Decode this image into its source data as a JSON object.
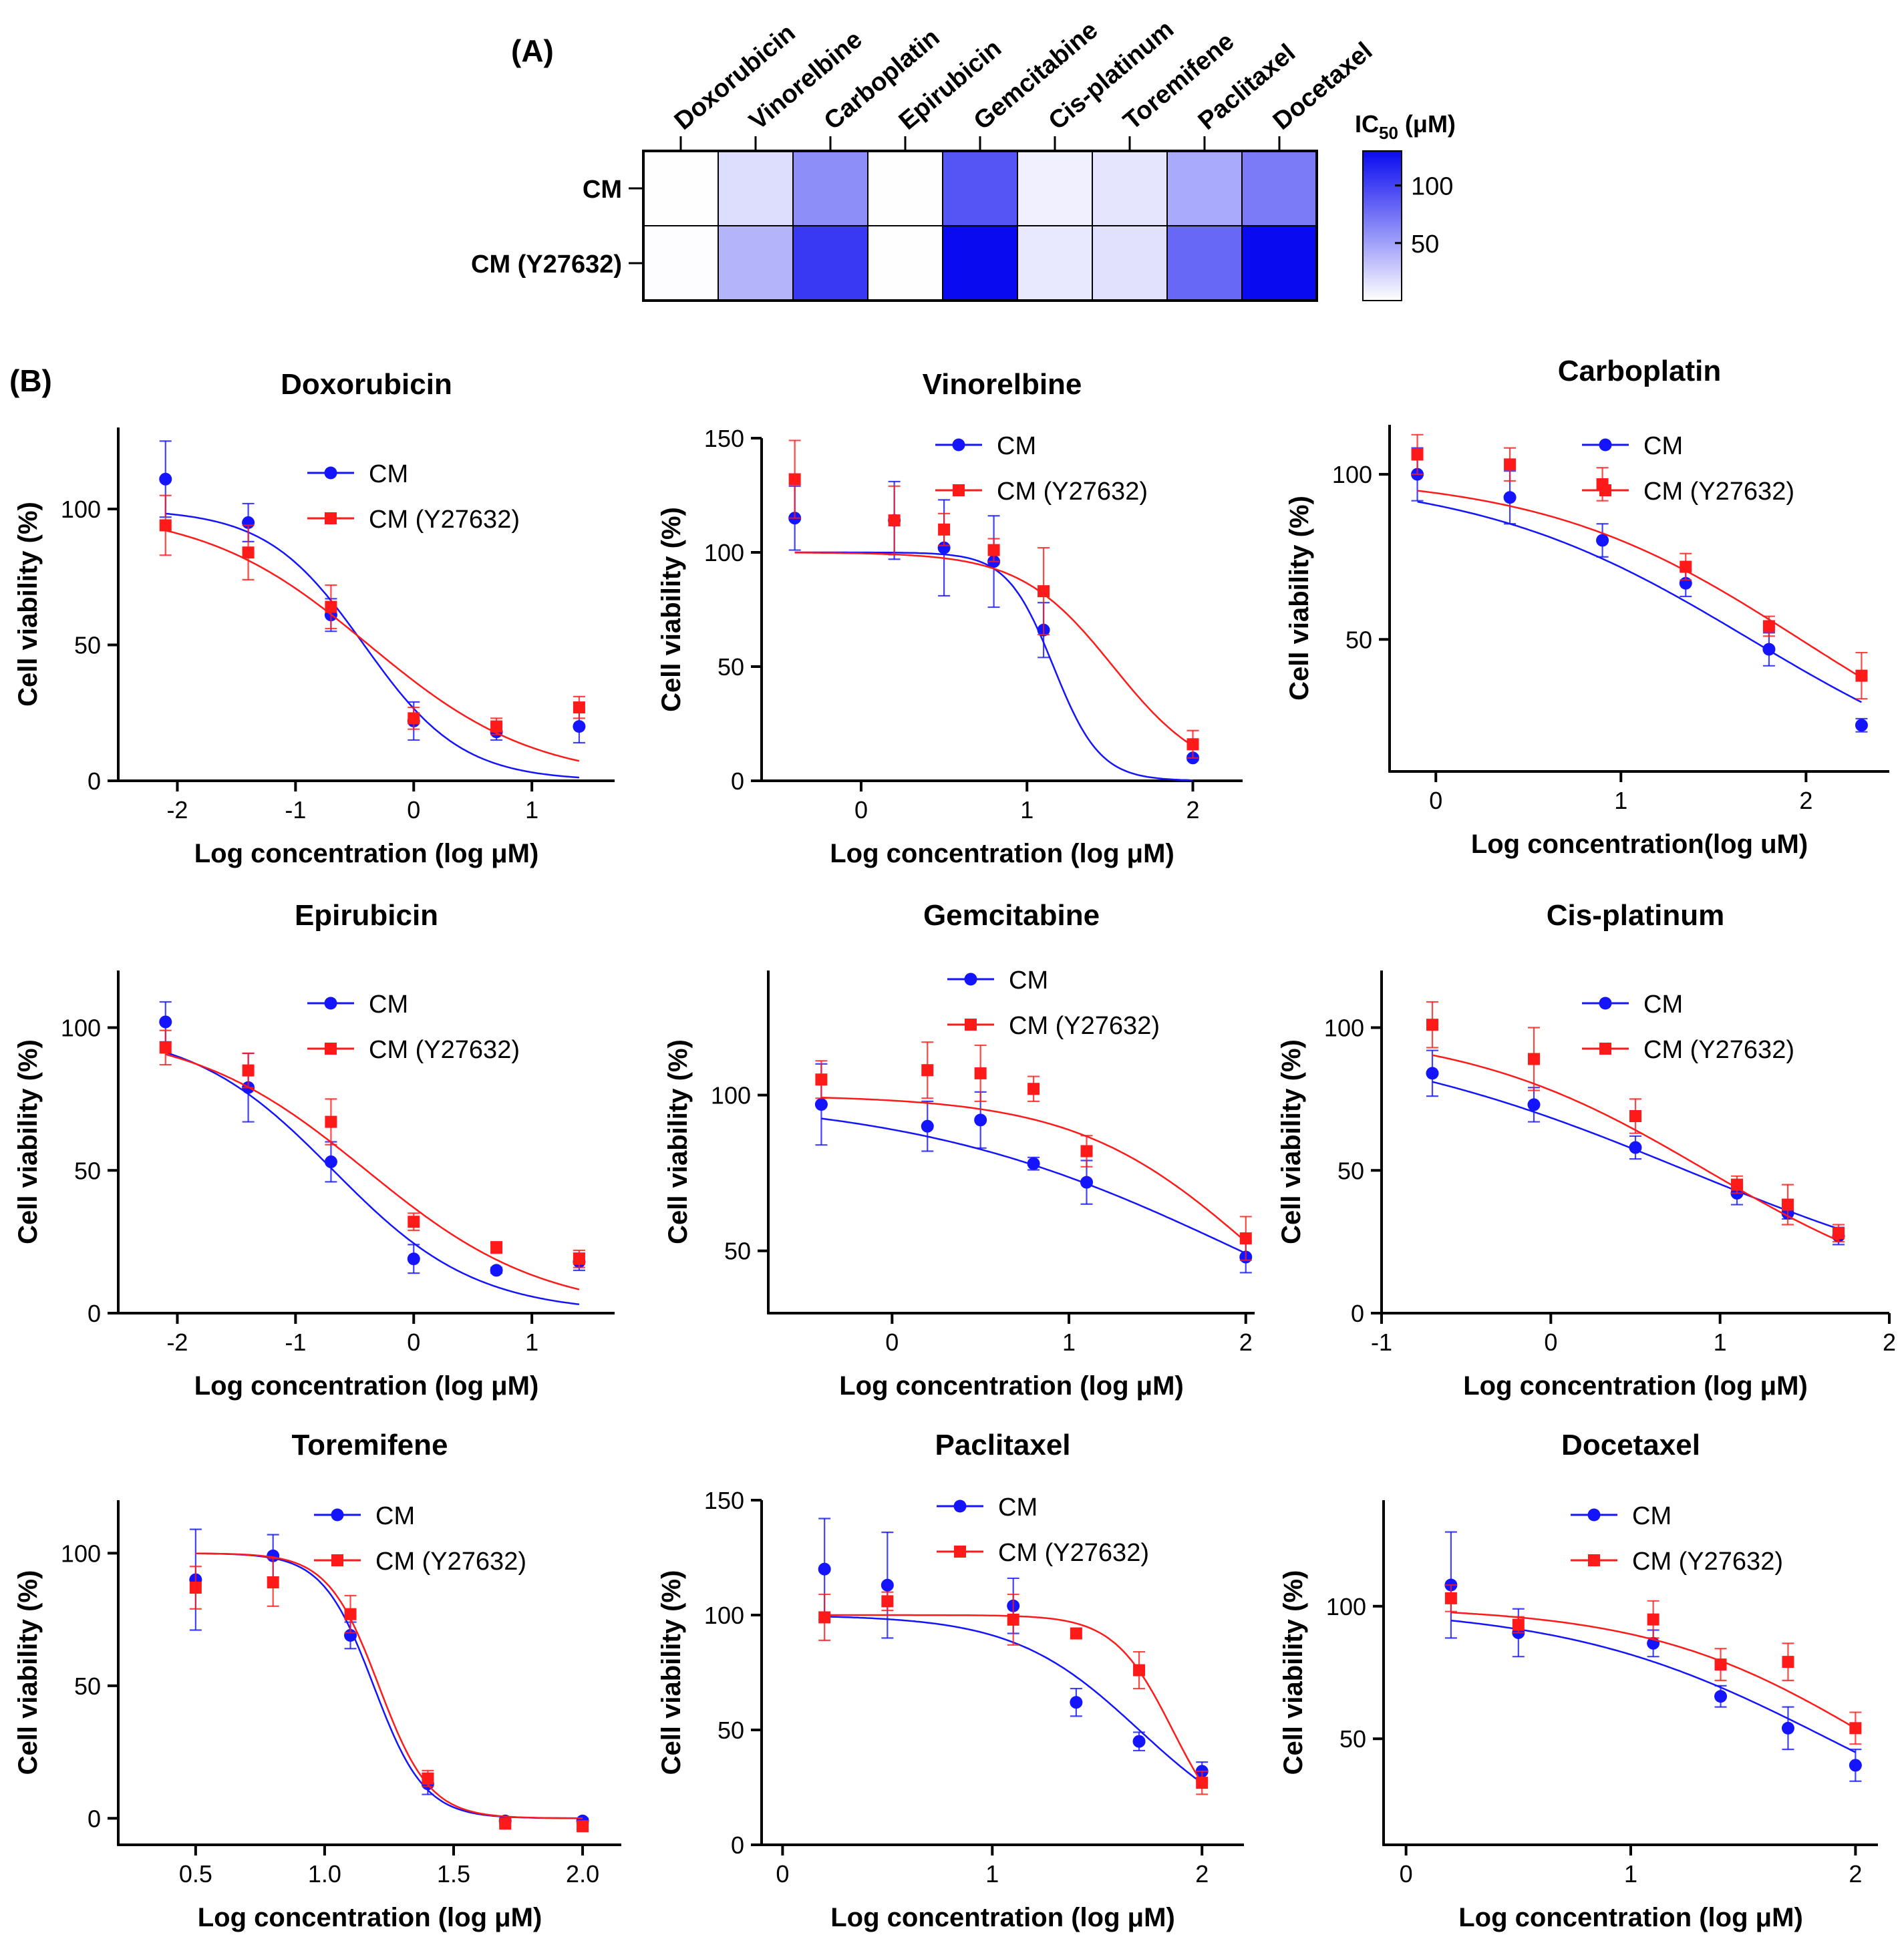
{
  "figure": {
    "panel_a_label": "(A)",
    "panel_b_label": "(B)",
    "colors": {
      "cm": "#1414ff",
      "y": "#ff1a1a",
      "heat_high": "#0a0af0",
      "heat_low": "#ffffff"
    }
  },
  "chart_data": [
    {
      "type": "heatmap",
      "title": "(A)",
      "columns": [
        "Doxorubicin",
        "Vinorelbine",
        "Carboplatin",
        "Epirubicin",
        "Gemcitabine",
        "Cis-platinum",
        "Toremifene",
        "Paclitaxel",
        "Docetaxel"
      ],
      "rows": [
        "CM",
        "CM (Y27632)"
      ],
      "values": [
        [
          0.5,
          18,
          60,
          0.4,
          90,
          8,
          14,
          45,
          70
        ],
        [
          0.8,
          40,
          105,
          0.6,
          130,
          12,
          16,
          80,
          150
        ]
      ],
      "colorbar": {
        "label_main": "IC",
        "label_sub": "50",
        "label_unit": " (μM)",
        "ticks": [
          50,
          100
        ],
        "range": [
          0,
          130
        ]
      }
    },
    {
      "type": "scatter",
      "title": "Doxorubicin",
      "xlabel": "Log concentration (log μM)",
      "ylabel": "Cell viability (%)",
      "xlim": [
        -2.5,
        1.7
      ],
      "ylim": [
        0,
        130
      ],
      "xticks": [
        -2,
        -1,
        0,
        1
      ],
      "yticks": [
        0,
        50,
        100
      ],
      "legend": [
        "CM",
        "CM (Y27632)"
      ],
      "series": [
        {
          "name": "CM",
          "x": [
            -2.1,
            -1.4,
            -0.7,
            0.0,
            0.7,
            1.4
          ],
          "y": [
            111,
            95,
            61,
            22,
            18,
            20
          ],
          "err": [
            14,
            7,
            6,
            7,
            3,
            6
          ],
          "fit": {
            "ec50": -0.42,
            "hill": 1.05,
            "bottom": 0,
            "top": 100
          }
        },
        {
          "name": "CM (Y27632)",
          "x": [
            -2.1,
            -1.4,
            -0.7,
            0.0,
            0.7,
            1.4
          ],
          "y": [
            94,
            84,
            64,
            23,
            20,
            27
          ],
          "err": [
            11,
            10,
            8,
            4,
            3,
            4
          ],
          "fit": {
            "ec50": -0.38,
            "hill": 0.62,
            "bottom": 0,
            "top": 100
          }
        }
      ]
    },
    {
      "type": "scatter",
      "title": "Vinorelbine",
      "xlabel": "Log concentration (log μM)",
      "ylabel": "Cell viability (%)",
      "xlim": [
        -0.6,
        2.3
      ],
      "ylim": [
        0,
        150
      ],
      "xticks": [
        0,
        1,
        2
      ],
      "yticks": [
        0,
        50,
        100,
        150
      ],
      "legend": [
        "CM",
        "CM (Y27632)"
      ],
      "series": [
        {
          "name": "CM",
          "x": [
            -0.4,
            0.2,
            0.5,
            0.8,
            1.1,
            2.0
          ],
          "y": [
            115,
            114,
            102,
            96,
            66,
            10
          ],
          "err": [
            14,
            17,
            21,
            20,
            12,
            1
          ],
          "fit": {
            "ec50": 1.16,
            "hill": 3.1,
            "bottom": 0,
            "top": 100
          }
        },
        {
          "name": "CM (Y27632)",
          "x": [
            -0.4,
            0.2,
            0.5,
            0.8,
            1.1,
            2.0
          ],
          "y": [
            132,
            114,
            110,
            101,
            83,
            16
          ],
          "err": [
            17,
            15,
            7,
            5,
            19,
            6
          ],
          "fit": {
            "ec50": 1.52,
            "hill": 1.55,
            "bottom": 0,
            "top": 100
          }
        }
      ]
    },
    {
      "type": "scatter",
      "title": "Carboplatin",
      "xlabel": "Log concentration(log uM)",
      "ylabel": "Cell viability (%)",
      "xlim": [
        -0.25,
        2.45
      ],
      "ylim": [
        10,
        115
      ],
      "xticks": [
        0,
        1,
        2
      ],
      "yticks": [
        50,
        100
      ],
      "legend": [
        "CM",
        "CM (Y27632)"
      ],
      "series": [
        {
          "name": "CM",
          "x": [
            -0.1,
            0.4,
            0.9,
            1.35,
            1.8,
            2.3
          ],
          "y": [
            100,
            93,
            80,
            67,
            47,
            24
          ],
          "err": [
            8,
            8,
            5,
            4,
            5,
            2
          ],
          "fit": {
            "ec50": 1.7,
            "hill": 0.58,
            "bottom": 0,
            "top": 100
          }
        },
        {
          "name": "CM (Y27632)",
          "x": [
            -0.1,
            0.4,
            0.9,
            1.35,
            1.8,
            2.3
          ],
          "y": [
            106,
            103,
            97,
            72,
            54,
            39
          ],
          "err": [
            6,
            5,
            5,
            4,
            3,
            7
          ],
          "fit": {
            "ec50": 1.97,
            "hill": 0.62,
            "bottom": 0,
            "top": 100
          }
        }
      ]
    },
    {
      "type": "scatter",
      "title": "Epirubicin",
      "xlabel": "Log concentration (log μM)",
      "ylabel": "Cell viability (%)",
      "xlim": [
        -2.5,
        1.7
      ],
      "ylim": [
        0,
        120
      ],
      "xticks": [
        -2,
        -1,
        0,
        1
      ],
      "yticks": [
        0,
        50,
        100
      ],
      "legend": [
        "CM",
        "CM (Y27632)"
      ],
      "series": [
        {
          "name": "CM",
          "x": [
            -2.1,
            -1.4,
            -0.7,
            0.0,
            0.7,
            1.4
          ],
          "y": [
            102,
            79,
            53,
            19,
            15,
            18
          ],
          "err": [
            7,
            12,
            7,
            5,
            1,
            3
          ],
          "fit": {
            "ec50": -0.68,
            "hill": 0.72,
            "bottom": 0,
            "top": 100
          }
        },
        {
          "name": "CM (Y27632)",
          "x": [
            -2.1,
            -1.4,
            -0.7,
            0.0,
            0.7,
            1.4
          ],
          "y": [
            93,
            85,
            67,
            32,
            23,
            19
          ],
          "err": [
            6,
            6,
            8,
            3,
            2,
            3
          ],
          "fit": {
            "ec50": -0.4,
            "hill": 0.58,
            "bottom": 0,
            "top": 100
          }
        }
      ]
    },
    {
      "type": "scatter",
      "title": "Gemcitabine",
      "xlabel": "Log concentration (log μM)",
      "ylabel": "Cell viability (%)",
      "xlim": [
        -0.7,
        2.05
      ],
      "ylim": [
        30,
        140
      ],
      "xticks": [
        0,
        1,
        2
      ],
      "yticks": [
        50,
        100
      ],
      "legend": [
        "CM",
        "CM (Y27632)"
      ],
      "series": [
        {
          "name": "CM",
          "x": [
            -0.4,
            0.2,
            0.5,
            0.8,
            1.1,
            2.0
          ],
          "y": [
            97,
            90,
            92,
            78,
            72,
            48
          ],
          "err": [
            13,
            8,
            9,
            2,
            7,
            5
          ],
          "fit": {
            "ec50": 1.97,
            "hill": 0.46,
            "bottom": 0,
            "top": 100
          }
        },
        {
          "name": "CM (Y27632)",
          "x": [
            -0.4,
            0.2,
            0.5,
            0.8,
            1.1,
            2.0
          ],
          "y": [
            105,
            108,
            107,
            102,
            82,
            54
          ],
          "err": [
            6,
            9,
            9,
            4,
            5,
            7
          ],
          "fit": {
            "ec50": 2.06,
            "hill": 0.85,
            "bottom": 0,
            "top": 100
          }
        }
      ]
    },
    {
      "type": "scatter",
      "title": "Cis-platinum",
      "xlabel": "Log concentration (log μM)",
      "ylabel": "Cell viability (%)",
      "xlim": [
        -1.0,
        2.0
      ],
      "ylim": [
        0,
        120
      ],
      "xticks": [
        -1,
        0,
        1,
        2
      ],
      "yticks": [
        0,
        50,
        100
      ],
      "legend": [
        "CM",
        "CM (Y27632)"
      ],
      "series": [
        {
          "name": "CM",
          "x": [
            -0.7,
            -0.1,
            0.5,
            1.1,
            1.4,
            1.7
          ],
          "y": [
            84,
            73,
            58,
            42,
            35,
            27
          ],
          "err": [
            8,
            6,
            4,
            4,
            2,
            3
          ],
          "fit": {
            "ec50": 0.8,
            "hill": 0.42,
            "bottom": 0,
            "top": 100
          }
        },
        {
          "name": "CM (Y27632)",
          "x": [
            -0.7,
            -0.1,
            0.5,
            1.1,
            1.4,
            1.7
          ],
          "y": [
            101,
            89,
            69,
            45,
            38,
            28
          ],
          "err": [
            8,
            11,
            6,
            3,
            7,
            3
          ],
          "fit": {
            "ec50": 0.92,
            "hill": 0.6,
            "bottom": 0,
            "top": 100
          }
        }
      ]
    },
    {
      "type": "scatter",
      "title": "Toremifene",
      "xlabel": "Log concentration (log μM)",
      "ylabel": "Cell viability (%)",
      "xlim": [
        0.2,
        2.15
      ],
      "ylim": [
        -10,
        120
      ],
      "xticks": [
        0.5,
        1.0,
        1.5,
        2.0
      ],
      "xtick_labels": [
        "0.5",
        "1.0",
        "1.5",
        "2.0"
      ],
      "yticks": [
        0,
        50,
        100
      ],
      "legend": [
        "CM",
        "CM (Y27632)"
      ],
      "series": [
        {
          "name": "CM",
          "x": [
            0.5,
            0.8,
            1.1,
            1.4,
            1.7,
            2.0
          ],
          "y": [
            90,
            99,
            69,
            13,
            -1,
            -1
          ],
          "err": [
            19,
            8,
            5,
            4,
            1,
            1
          ],
          "fit": {
            "ec50": 1.19,
            "hill": 4.4,
            "bottom": 0,
            "top": 100
          }
        },
        {
          "name": "CM (Y27632)",
          "x": [
            0.5,
            0.8,
            1.1,
            1.4,
            1.7,
            2.0
          ],
          "y": [
            87,
            89,
            77,
            15,
            -2,
            -3
          ],
          "err": [
            8,
            9,
            7,
            3,
            1,
            1
          ],
          "fit": {
            "ec50": 1.21,
            "hill": 4.4,
            "bottom": 0,
            "top": 100
          }
        }
      ]
    },
    {
      "type": "scatter",
      "title": "Paclitaxel",
      "xlabel": "Log concentration (log μM)",
      "ylabel": "Cell viability (%)",
      "xlim": [
        -0.1,
        2.2
      ],
      "ylim": [
        0,
        150
      ],
      "xticks": [
        0,
        1,
        2
      ],
      "yticks": [
        0,
        50,
        100,
        150
      ],
      "legend": [
        "CM",
        "CM (Y27632)"
      ],
      "series": [
        {
          "name": "CM",
          "x": [
            0.2,
            0.5,
            1.1,
            1.4,
            1.7,
            2.0
          ],
          "y": [
            120,
            113,
            104,
            62,
            45,
            32
          ],
          "err": [
            22,
            23,
            12,
            6,
            4,
            4
          ],
          "fit": {
            "ec50": 1.7,
            "hill": 1.45,
            "bottom": 0,
            "top": 100
          }
        },
        {
          "name": "CM (Y27632)",
          "x": [
            0.2,
            0.5,
            1.1,
            1.4,
            1.7,
            2.0
          ],
          "y": [
            99,
            106,
            98,
            92,
            76,
            27
          ],
          "err": [
            10,
            4,
            11,
            2,
            8,
            5
          ],
          "fit": {
            "ec50": 1.86,
            "hill": 3.1,
            "bottom": 0,
            "top": 100
          }
        }
      ]
    },
    {
      "type": "scatter",
      "title": "Docetaxel",
      "xlabel": "Log concentration (log μM)",
      "ylabel": "Cell viability (%)",
      "xlim": [
        -0.1,
        2.1
      ],
      "ylim": [
        10,
        140
      ],
      "xticks": [
        0,
        1,
        2
      ],
      "yticks": [
        50,
        100
      ],
      "legend": [
        "CM",
        "CM (Y27632)"
      ],
      "series": [
        {
          "name": "CM",
          "x": [
            0.2,
            0.5,
            1.1,
            1.4,
            1.7,
            2.0
          ],
          "y": [
            108,
            90,
            86,
            66,
            54,
            40
          ],
          "err": [
            20,
            9,
            5,
            4,
            8,
            6
          ],
          "fit": {
            "ec50": 1.88,
            "hill": 0.74,
            "bottom": 0,
            "top": 100
          }
        },
        {
          "name": "CM (Y27632)",
          "x": [
            0.2,
            0.5,
            1.1,
            1.4,
            1.7,
            2.0
          ],
          "y": [
            103,
            93,
            95,
            78,
            79,
            54
          ],
          "err": [
            5,
            3,
            7,
            6,
            7,
            6
          ],
          "fit": {
            "ec50": 2.08,
            "hill": 0.86,
            "bottom": 0,
            "top": 100
          }
        }
      ]
    }
  ]
}
